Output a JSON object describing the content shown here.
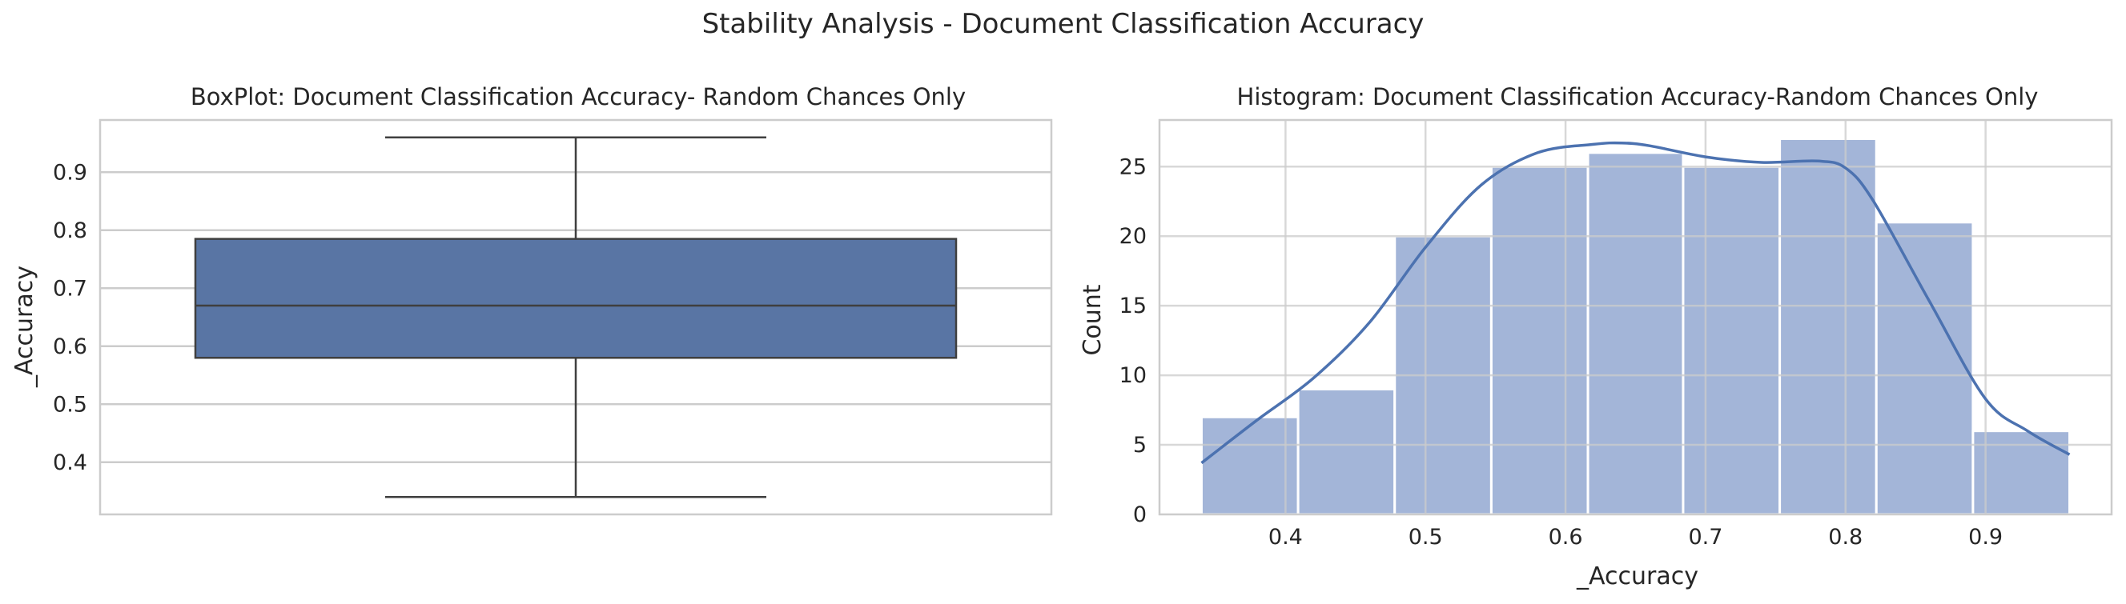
{
  "suptitle": "Stability Analysis - Document Classification Accuracy",
  "colors": {
    "box_fill": "#5975a4",
    "box_edge": "#3f3f3f",
    "hist_fill": "#a3b5d8",
    "kde_line": "#4c72b0",
    "grid": "#cccccc",
    "spine": "#cccccc"
  },
  "chart_data": [
    {
      "type": "box",
      "title": "BoxPlot: Document Classification Accuracy- Random Chances Only",
      "xlabel": "",
      "ylabel": "_Accuracy",
      "ylim": [
        0.31,
        0.99
      ],
      "yticks": [
        0.4,
        0.5,
        0.6,
        0.7,
        0.8,
        0.9
      ],
      "ytick_labels": [
        "0.4",
        "0.5",
        "0.6",
        "0.7",
        "0.8",
        "0.9"
      ],
      "whisker_low": 0.34,
      "q1": 0.58,
      "median": 0.67,
      "q3": 0.785,
      "whisker_high": 0.96,
      "grid": true
    },
    {
      "type": "histogram",
      "title": "Histogram: Document Classification Accuracy-Random Chances Only",
      "xlabel": "_Accuracy",
      "ylabel": "Count",
      "xlim": [
        0.31,
        0.99
      ],
      "ylim": [
        0,
        28.35
      ],
      "xticks": [
        0.4,
        0.5,
        0.6,
        0.7,
        0.8,
        0.9
      ],
      "xtick_labels": [
        "0.4",
        "0.5",
        "0.6",
        "0.7",
        "0.8",
        "0.9"
      ],
      "yticks": [
        0,
        5,
        10,
        15,
        20,
        25
      ],
      "ytick_labels": [
        "0",
        "5",
        "10",
        "15",
        "20",
        "25"
      ],
      "bin_edges": [
        0.34,
        0.409,
        0.478,
        0.547,
        0.616,
        0.684,
        0.753,
        0.822,
        0.891,
        0.96
      ],
      "counts": [
        7,
        9,
        20,
        25,
        26,
        25,
        27,
        21,
        6
      ],
      "kde": {
        "x": [
          0.34,
          0.38,
          0.42,
          0.46,
          0.5,
          0.54,
          0.58,
          0.62,
          0.64,
          0.66,
          0.7,
          0.74,
          0.78,
          0.8,
          0.82,
          0.86,
          0.9,
          0.93,
          0.96
        ],
        "y": [
          3.7,
          6.8,
          9.8,
          13.8,
          19.2,
          23.7,
          26.0,
          26.6,
          26.7,
          26.5,
          25.7,
          25.3,
          25.4,
          24.9,
          22.5,
          15.3,
          8.3,
          6.0,
          4.3
        ]
      },
      "grid": true
    }
  ]
}
